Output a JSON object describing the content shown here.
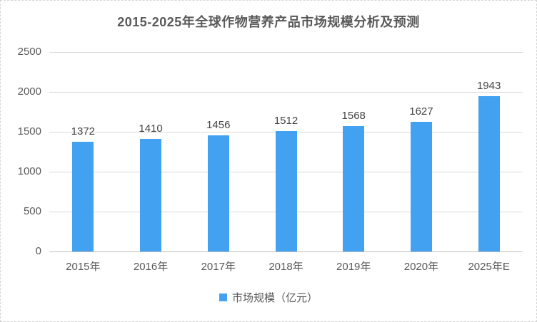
{
  "chart_data": {
    "type": "bar",
    "title": "2015-2025年全球作物营养产品市场规模分析及预测",
    "categories": [
      "2015年",
      "2016年",
      "2017年",
      "2018年",
      "2019年",
      "2020年",
      "2025年E"
    ],
    "values": [
      1372,
      1410,
      1456,
      1512,
      1568,
      1627,
      1943
    ],
    "legend": "市场规模（亿元）",
    "ylim": [
      0,
      2500
    ],
    "ytick_step": 500,
    "grid": "horizontal",
    "legend_position": "bottom",
    "bar_color": "#42a1f1",
    "gridline_color": "#d9d9d9",
    "axis_text_color": "#595959",
    "value_label_color": "#444444",
    "title_color": "#595959"
  }
}
